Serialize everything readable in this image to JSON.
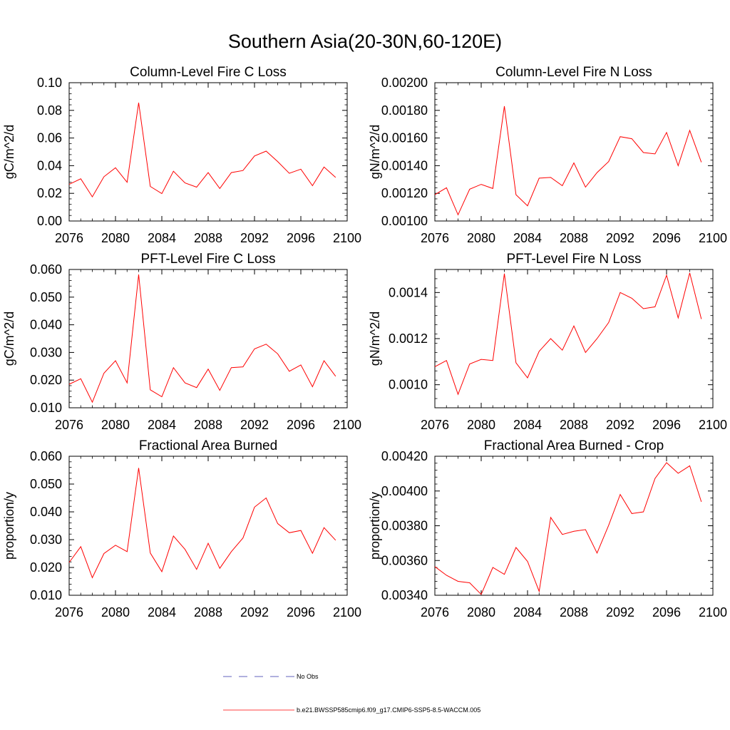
{
  "figure": {
    "title": "Southern Asia(20-30N,60-120E)"
  },
  "legend": {
    "entries": [
      {
        "label": "No Obs",
        "color": "#2f2fa8",
        "style": "dashed"
      },
      {
        "label": "b.e21.BWSSP585cmip6.f09_g17.CMIP6-SSP5-8.5-WACCM.005",
        "color": "#ff0000",
        "style": "solid"
      }
    ]
  },
  "chart_data": [
    {
      "type": "line",
      "title": "Column-Level Fire C Loss",
      "ylabel": "gC/m^2/d",
      "xlim": [
        2076,
        2100
      ],
      "ylim": [
        0.0,
        0.1
      ],
      "xticks": [
        "2076",
        "2080",
        "2084",
        "2088",
        "2092",
        "2096",
        "2100"
      ],
      "yticks": [
        "0.00",
        "0.02",
        "0.04",
        "0.06",
        "0.08",
        "0.10"
      ],
      "x": [
        2076,
        2077,
        2078,
        2079,
        2080,
        2081,
        2082,
        2083,
        2084,
        2085,
        2086,
        2087,
        2088,
        2089,
        2090,
        2091,
        2092,
        2093,
        2094,
        2095,
        2096,
        2097,
        2098,
        2099
      ],
      "series": [
        {
          "name": "b.e21.BWSSP585cmip6.f09_g17.CMIP6-SSP5-8.5-WACCM.005",
          "color": "#ff0000",
          "values": [
            0.0265,
            0.0305,
            0.0175,
            0.032,
            0.0385,
            0.028,
            0.0855,
            0.025,
            0.0198,
            0.036,
            0.0275,
            0.0245,
            0.035,
            0.0235,
            0.035,
            0.0365,
            0.047,
            0.0505,
            0.043,
            0.0345,
            0.0375,
            0.0255,
            0.039,
            0.0315
          ]
        }
      ]
    },
    {
      "type": "line",
      "title": "Column-Level Fire N Loss",
      "ylabel": "gN/m^2/d",
      "xlim": [
        2076,
        2100
      ],
      "ylim": [
        0.001,
        0.002
      ],
      "xticks": [
        "2076",
        "2080",
        "2084",
        "2088",
        "2092",
        "2096",
        "2100"
      ],
      "yticks": [
        "0.00100",
        "0.00120",
        "0.00140",
        "0.00160",
        "0.00180",
        "0.00200"
      ],
      "x": [
        2076,
        2077,
        2078,
        2079,
        2080,
        2081,
        2082,
        2083,
        2084,
        2085,
        2086,
        2087,
        2088,
        2089,
        2090,
        2091,
        2092,
        2093,
        2094,
        2095,
        2096,
        2097,
        2098,
        2099
      ],
      "series": [
        {
          "name": "b.e21.BWSSP585cmip6.f09_g17.CMIP6-SSP5-8.5-WACCM.005",
          "color": "#ff0000",
          "values": [
            0.00119,
            0.00124,
            0.001045,
            0.00123,
            0.001265,
            0.001235,
            0.00183,
            0.00119,
            0.00111,
            0.00131,
            0.001315,
            0.001255,
            0.00142,
            0.001245,
            0.00135,
            0.00143,
            0.00161,
            0.001595,
            0.001495,
            0.001485,
            0.00164,
            0.0014,
            0.001655,
            0.001425
          ]
        }
      ]
    },
    {
      "type": "line",
      "title": "PFT-Level Fire C Loss",
      "ylabel": "gC/m^2/d",
      "xlim": [
        2076,
        2100
      ],
      "ylim": [
        0.01,
        0.06
      ],
      "xticks": [
        "2076",
        "2080",
        "2084",
        "2088",
        "2092",
        "2096",
        "2100"
      ],
      "yticks": [
        "0.010",
        "0.020",
        "0.030",
        "0.040",
        "0.050",
        "0.060"
      ],
      "x": [
        2076,
        2077,
        2078,
        2079,
        2080,
        2081,
        2082,
        2083,
        2084,
        2085,
        2086,
        2087,
        2088,
        2089,
        2090,
        2091,
        2092,
        2093,
        2094,
        2095,
        2096,
        2097,
        2098,
        2099
      ],
      "series": [
        {
          "name": "b.e21.BWSSP585cmip6.f09_g17.CMIP6-SSP5-8.5-WACCM.005",
          "color": "#ff0000",
          "values": [
            0.0185,
            0.0205,
            0.012,
            0.0225,
            0.027,
            0.019,
            0.0582,
            0.0165,
            0.014,
            0.0245,
            0.019,
            0.0173,
            0.024,
            0.0163,
            0.0245,
            0.0248,
            0.0313,
            0.033,
            0.0295,
            0.0232,
            0.0255,
            0.0176,
            0.027,
            0.0214
          ]
        }
      ]
    },
    {
      "type": "line",
      "title": "PFT-Level Fire N Loss",
      "ylabel": "gN/m^2/d",
      "xlim": [
        2076,
        2100
      ],
      "ylim": [
        0.0009,
        0.0015
      ],
      "xticks": [
        "2076",
        "2080",
        "2084",
        "2088",
        "2092",
        "2096",
        "2100"
      ],
      "yticks": [
        "0.0010",
        "0.0012",
        "0.0014"
      ],
      "x": [
        2076,
        2077,
        2078,
        2079,
        2080,
        2081,
        2082,
        2083,
        2084,
        2085,
        2086,
        2087,
        2088,
        2089,
        2090,
        2091,
        2092,
        2093,
        2094,
        2095,
        2096,
        2097,
        2098,
        2099
      ],
      "series": [
        {
          "name": "b.e21.BWSSP585cmip6.f09_g17.CMIP6-SSP5-8.5-WACCM.005",
          "color": "#ff0000",
          "values": [
            0.001078,
            0.001105,
            0.000958,
            0.00109,
            0.00111,
            0.001105,
            0.001482,
            0.001095,
            0.00103,
            0.001145,
            0.0012,
            0.00115,
            0.001255,
            0.00114,
            0.0012,
            0.00127,
            0.0014,
            0.001375,
            0.00133,
            0.001338,
            0.001475,
            0.00129,
            0.001485,
            0.001285
          ]
        }
      ]
    },
    {
      "type": "line",
      "title": "Fractional Area Burned",
      "ylabel": "proportion/y",
      "xlim": [
        2076,
        2100
      ],
      "ylim": [
        0.01,
        0.06
      ],
      "xticks": [
        "2076",
        "2080",
        "2084",
        "2088",
        "2092",
        "2096",
        "2100"
      ],
      "yticks": [
        "0.010",
        "0.020",
        "0.030",
        "0.040",
        "0.050",
        "0.060"
      ],
      "x": [
        2076,
        2077,
        2078,
        2079,
        2080,
        2081,
        2082,
        2083,
        2084,
        2085,
        2086,
        2087,
        2088,
        2089,
        2090,
        2091,
        2092,
        2093,
        2094,
        2095,
        2096,
        2097,
        2098,
        2099
      ],
      "series": [
        {
          "name": "b.e21.BWSSP585cmip6.f09_g17.CMIP6-SSP5-8.5-WACCM.005",
          "color": "#ff0000",
          "values": [
            0.0218,
            0.0275,
            0.0163,
            0.025,
            0.028,
            0.0257,
            0.0558,
            0.0252,
            0.0185,
            0.0313,
            0.0265,
            0.0193,
            0.0287,
            0.0197,
            0.0257,
            0.0306,
            0.0417,
            0.045,
            0.0358,
            0.0325,
            0.0333,
            0.0251,
            0.0343,
            0.0298
          ]
        }
      ]
    },
    {
      "type": "line",
      "title": "Fractional Area Burned - Crop",
      "ylabel": "proportion/y",
      "xlim": [
        2076,
        2100
      ],
      "ylim": [
        0.0034,
        0.0042
      ],
      "xticks": [
        "2076",
        "2080",
        "2084",
        "2088",
        "2092",
        "2096",
        "2100"
      ],
      "yticks": [
        "0.00340",
        "0.00360",
        "0.00380",
        "0.00400",
        "0.00420"
      ],
      "x": [
        2076,
        2077,
        2078,
        2079,
        2080,
        2081,
        2082,
        2083,
        2084,
        2085,
        2086,
        2087,
        2088,
        2089,
        2090,
        2091,
        2092,
        2093,
        2094,
        2095,
        2096,
        2097,
        2098,
        2099
      ],
      "series": [
        {
          "name": "b.e21.BWSSP585cmip6.f09_g17.CMIP6-SSP5-8.5-WACCM.005",
          "color": "#ff0000",
          "values": [
            0.003565,
            0.003515,
            0.00348,
            0.003472,
            0.003405,
            0.00356,
            0.00352,
            0.003675,
            0.003595,
            0.003422,
            0.003848,
            0.00375,
            0.003768,
            0.003778,
            0.003643,
            0.003803,
            0.00398,
            0.00387,
            0.00388,
            0.004072,
            0.004163,
            0.004102,
            0.004145,
            0.003938
          ]
        }
      ]
    }
  ]
}
